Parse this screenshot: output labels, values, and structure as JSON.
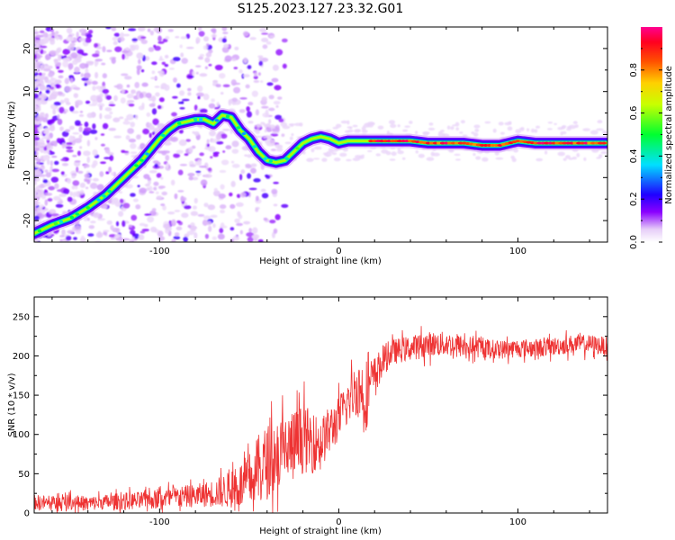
{
  "figure": {
    "title": "S125.2023.127.23.32.G01"
  },
  "chart_data": [
    {
      "type": "heatmap",
      "xlabel": "Height of straight line (km)",
      "ylabel": "Frequency (Hz)",
      "xlim": [
        -170,
        150
      ],
      "ylim": [
        -25,
        25
      ],
      "xticks": [
        -100,
        0,
        100
      ],
      "yticks": [
        -20,
        -10,
        0,
        10,
        20
      ],
      "grid": false,
      "colorbar": {
        "label": "Normalized spectral amplitude",
        "range": [
          0.0,
          1.0
        ],
        "ticks": [
          0.0,
          0.2,
          0.4,
          0.6,
          0.8
        ],
        "colormap": [
          "#ffffff",
          "#e0c8f8",
          "#8000ff",
          "#0000ff",
          "#00ffff",
          "#00ff00",
          "#ffff00",
          "#ff8000",
          "#ff0000",
          "#ff0080"
        ]
      },
      "ridge": {
        "x": [
          -170,
          -160,
          -150,
          -140,
          -130,
          -120,
          -110,
          -100,
          -95,
          -90,
          -85,
          -80,
          -75,
          -70,
          -65,
          -60,
          -55,
          -50,
          -45,
          -40,
          -35,
          -30,
          -25,
          -20,
          -15,
          -10,
          -5,
          0,
          5,
          10,
          20,
          30,
          40,
          50,
          60,
          70,
          80,
          90,
          100,
          110,
          120,
          130,
          140,
          150
        ],
        "y": [
          -23,
          -21,
          -19.5,
          -17,
          -14,
          -10,
          -6,
          -1,
          1,
          2.5,
          3,
          3.5,
          3.5,
          2.5,
          4.5,
          4,
          1,
          -1,
          -4,
          -6,
          -6.5,
          -6,
          -4,
          -2,
          -1,
          -0.5,
          -1,
          -2,
          -1.5,
          -1.5,
          -1.5,
          -1.5,
          -1.5,
          -2,
          -2,
          -2,
          -2.5,
          -2.5,
          -1.5,
          -2,
          -2,
          -2,
          -2,
          -2
        ]
      }
    },
    {
      "type": "line",
      "xlabel": "Height of straight line (km)",
      "ylabel": "SNR (10 * v/v)",
      "xlim": [
        -170,
        150
      ],
      "ylim": [
        0,
        275
      ],
      "xticks": [
        -100,
        0,
        100
      ],
      "yticks": [
        0,
        50,
        100,
        150,
        200,
        250
      ],
      "grid": false,
      "series": [
        {
          "color": "#ee3333",
          "x": [
            -170,
            -160,
            -150,
            -140,
            -130,
            -120,
            -110,
            -100,
            -90,
            -80,
            -70,
            -60,
            -50,
            -45,
            -40,
            -35,
            -30,
            -25,
            -20,
            -15,
            -10,
            -5,
            0,
            5,
            10,
            15,
            20,
            25,
            30,
            40,
            50,
            60,
            70,
            80,
            90,
            100,
            110,
            120,
            130,
            140,
            150
          ],
          "y": [
            14,
            12,
            14,
            12,
            14,
            15,
            16,
            18,
            20,
            22,
            25,
            30,
            40,
            55,
            65,
            75,
            80,
            85,
            95,
            90,
            90,
            105,
            120,
            140,
            160,
            150,
            175,
            195,
            205,
            210,
            215,
            215,
            212,
            210,
            208,
            210,
            210,
            212,
            215,
            215,
            212
          ],
          "noise_amplitude": [
            12,
            12,
            12,
            12,
            12,
            14,
            14,
            16,
            18,
            18,
            22,
            30,
            45,
            55,
            60,
            60,
            60,
            60,
            55,
            50,
            40,
            40,
            35,
            35,
            45,
            60,
            30,
            25,
            20,
            20,
            20,
            20,
            18,
            16,
            15,
            15,
            15,
            15,
            15,
            15,
            15
          ]
        }
      ]
    }
  ]
}
